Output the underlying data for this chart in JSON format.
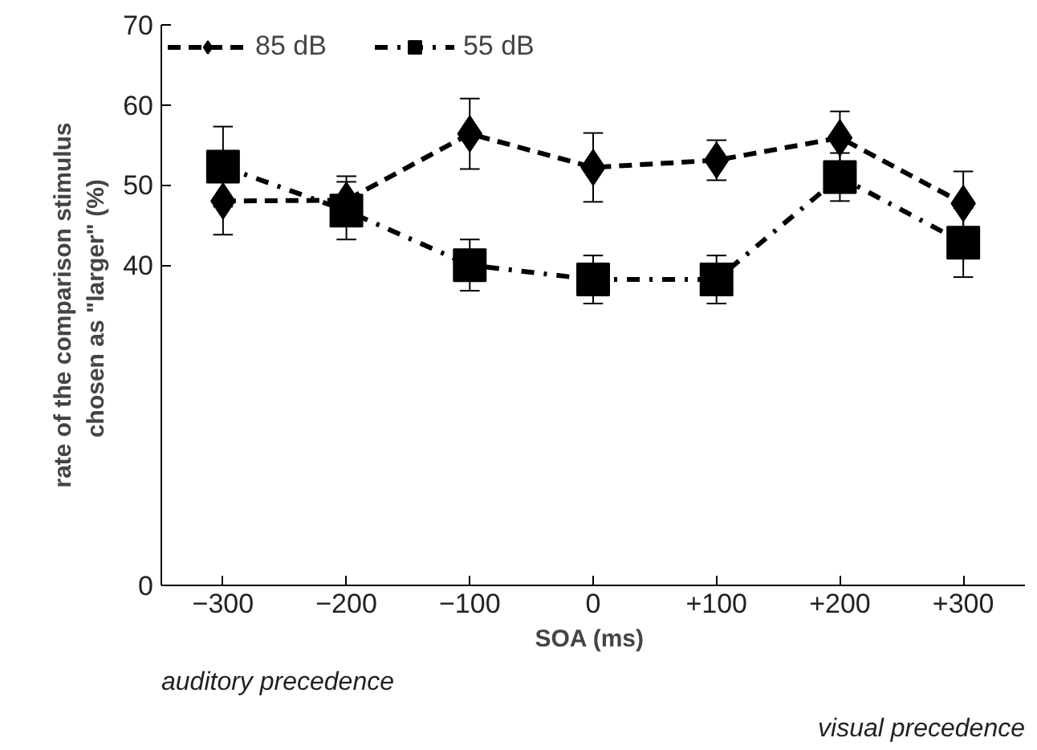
{
  "chart_data": {
    "type": "line",
    "xlabel": "SOA  (ms)",
    "ylabel": "rate of the comparison stimulus\nchosen as \"larger\"  (%)",
    "x": [
      -300,
      -200,
      -100,
      0,
      100,
      200,
      300
    ],
    "xlim": [
      -350,
      350
    ],
    "xticks": [
      -300,
      -200,
      -100,
      0,
      {
        "value": 100,
        "label": "+100"
      },
      {
        "value": 200,
        "label": "+200"
      },
      {
        "value": 300,
        "label": "+300"
      }
    ],
    "ylim": [
      0,
      70
    ],
    "yticks": [
      0,
      40,
      50,
      60,
      70
    ],
    "series": [
      {
        "name": "85 dB",
        "color": "#000000",
        "marker": "diamond",
        "line_style": "dashed",
        "values": [
          48.0,
          48.1,
          56.4,
          52.2,
          53.1,
          55.9,
          47.7
        ],
        "errors": [
          4.2,
          3.0,
          4.4,
          4.3,
          2.5,
          3.3,
          4.0
        ]
      },
      {
        "name": "55 dB",
        "color": "#000000",
        "marker": "square",
        "line_style": "dashdot",
        "values": [
          52.3,
          46.8,
          40.0,
          38.2,
          38.2,
          51.0,
          42.8
        ],
        "errors": [
          5.0,
          3.6,
          3.2,
          3.0,
          3.0,
          3.0,
          4.3
        ]
      }
    ],
    "annotations": [
      "auditory precedence",
      "visual precedence"
    ],
    "legend": "top left",
    "grid": false
  }
}
